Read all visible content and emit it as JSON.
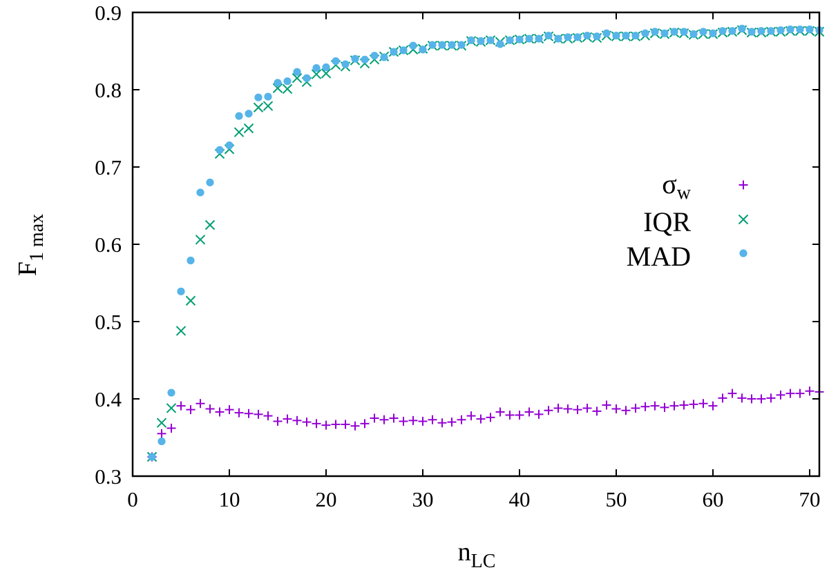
{
  "chart_data": {
    "type": "scatter",
    "title": "",
    "xlabel": {
      "base": "n",
      "sub": "LC"
    },
    "ylabel": {
      "base": "F",
      "sub": "1 max"
    },
    "xlim": [
      0,
      71
    ],
    "ylim": [
      0.3,
      0.9
    ],
    "xticks": [
      "0",
      "10",
      "20",
      "30",
      "40",
      "50",
      "60",
      "70"
    ],
    "yticks": [
      "0.3",
      "0.4",
      "0.5",
      "0.6",
      "0.7",
      "0.8",
      "0.9"
    ],
    "grid": false,
    "legend_position": "right",
    "series": [
      {
        "name": "σ",
        "name_sub": "w",
        "marker": "plus",
        "color": "#9400d3",
        "x": [
          2,
          3,
          4,
          5,
          6,
          7,
          8,
          9,
          10,
          11,
          12,
          13,
          14,
          15,
          16,
          17,
          18,
          19,
          20,
          21,
          22,
          23,
          24,
          25,
          26,
          27,
          28,
          29,
          30,
          31,
          32,
          33,
          34,
          35,
          36,
          37,
          38,
          39,
          40,
          41,
          42,
          43,
          44,
          45,
          46,
          47,
          48,
          49,
          50,
          51,
          52,
          53,
          54,
          55,
          56,
          57,
          58,
          59,
          60,
          61,
          62,
          63,
          64,
          65,
          66,
          67,
          68,
          69,
          70,
          71
        ],
        "y": [
          0.325,
          0.355,
          0.362,
          0.391,
          0.386,
          0.394,
          0.387,
          0.383,
          0.386,
          0.382,
          0.381,
          0.38,
          0.378,
          0.371,
          0.374,
          0.372,
          0.37,
          0.368,
          0.366,
          0.367,
          0.367,
          0.365,
          0.368,
          0.375,
          0.373,
          0.375,
          0.371,
          0.372,
          0.371,
          0.373,
          0.369,
          0.37,
          0.373,
          0.378,
          0.374,
          0.376,
          0.383,
          0.379,
          0.379,
          0.383,
          0.38,
          0.385,
          0.388,
          0.387,
          0.386,
          0.388,
          0.384,
          0.392,
          0.387,
          0.385,
          0.388,
          0.39,
          0.391,
          0.389,
          0.391,
          0.392,
          0.393,
          0.394,
          0.391,
          0.401,
          0.407,
          0.401,
          0.4,
          0.4,
          0.401,
          0.405,
          0.407,
          0.407,
          0.41,
          0.409
        ]
      },
      {
        "name": "IQR",
        "marker": "cross",
        "color": "#009e73",
        "x": [
          2,
          3,
          4,
          5,
          6,
          7,
          8,
          9,
          10,
          11,
          12,
          13,
          14,
          15,
          16,
          17,
          18,
          19,
          20,
          21,
          22,
          23,
          24,
          25,
          26,
          27,
          28,
          29,
          30,
          31,
          32,
          33,
          34,
          35,
          36,
          37,
          38,
          39,
          40,
          41,
          42,
          43,
          44,
          45,
          46,
          47,
          48,
          49,
          50,
          51,
          52,
          53,
          54,
          55,
          56,
          57,
          58,
          59,
          60,
          61,
          62,
          63,
          64,
          65,
          66,
          67,
          68,
          69,
          70,
          71
        ],
        "y": [
          0.325,
          0.369,
          0.388,
          0.488,
          0.527,
          0.606,
          0.625,
          0.717,
          0.723,
          0.745,
          0.75,
          0.777,
          0.779,
          0.802,
          0.801,
          0.815,
          0.81,
          0.82,
          0.821,
          0.832,
          0.83,
          0.838,
          0.834,
          0.839,
          0.843,
          0.849,
          0.851,
          0.852,
          0.853,
          0.857,
          0.857,
          0.857,
          0.857,
          0.863,
          0.862,
          0.864,
          0.862,
          0.864,
          0.865,
          0.866,
          0.866,
          0.869,
          0.866,
          0.866,
          0.867,
          0.868,
          0.867,
          0.87,
          0.869,
          0.869,
          0.869,
          0.87,
          0.873,
          0.872,
          0.874,
          0.873,
          0.871,
          0.872,
          0.872,
          0.874,
          0.875,
          0.877,
          0.874,
          0.874,
          0.875,
          0.875,
          0.876,
          0.876,
          0.876,
          0.875
        ]
      },
      {
        "name": "MAD",
        "marker": "circle",
        "color": "#56b4e9",
        "x": [
          2,
          3,
          4,
          5,
          6,
          7,
          8,
          9,
          10,
          11,
          12,
          13,
          14,
          15,
          16,
          17,
          18,
          19,
          20,
          21,
          22,
          23,
          24,
          25,
          26,
          27,
          28,
          29,
          30,
          31,
          32,
          33,
          34,
          35,
          36,
          37,
          38,
          39,
          40,
          41,
          42,
          43,
          44,
          45,
          46,
          47,
          48,
          49,
          50,
          51,
          52,
          53,
          54,
          55,
          56,
          57,
          58,
          59,
          60,
          61,
          62,
          63,
          64,
          65,
          66,
          67,
          68,
          69,
          70,
          71
        ],
        "y": [
          0.325,
          0.345,
          0.408,
          0.539,
          0.579,
          0.667,
          0.68,
          0.722,
          0.728,
          0.766,
          0.769,
          0.79,
          0.791,
          0.809,
          0.811,
          0.823,
          0.815,
          0.828,
          0.829,
          0.837,
          0.833,
          0.84,
          0.839,
          0.844,
          0.842,
          0.849,
          0.851,
          0.857,
          0.852,
          0.858,
          0.858,
          0.858,
          0.858,
          0.864,
          0.863,
          0.864,
          0.859,
          0.864,
          0.865,
          0.866,
          0.866,
          0.87,
          0.866,
          0.868,
          0.868,
          0.87,
          0.869,
          0.873,
          0.87,
          0.87,
          0.87,
          0.873,
          0.875,
          0.873,
          0.875,
          0.875,
          0.872,
          0.875,
          0.873,
          0.876,
          0.876,
          0.879,
          0.875,
          0.876,
          0.876,
          0.877,
          0.878,
          0.878,
          0.878,
          0.877
        ]
      }
    ]
  }
}
